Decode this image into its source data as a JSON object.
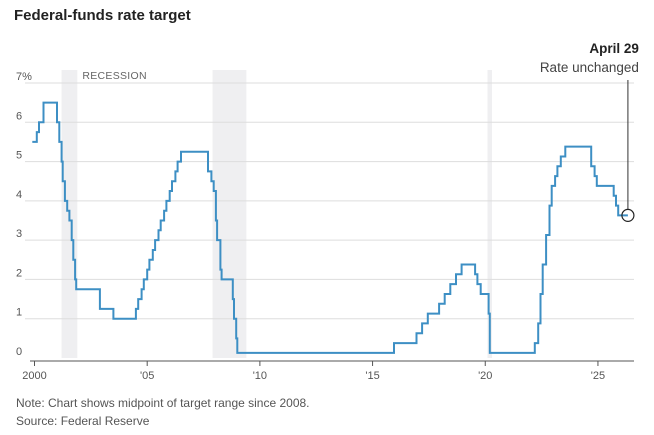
{
  "header": {
    "title": "Federal-funds rate target"
  },
  "footer": {
    "note": "Note: Chart shows midpoint of target range since 2008.",
    "source": "Source: Federal Reserve"
  },
  "chart_data": {
    "type": "line",
    "title": "Federal-funds rate target",
    "xlabel": "",
    "ylabel": "",
    "xlim": [
      1999.8,
      2026.6
    ],
    "ylim": [
      0,
      7
    ],
    "y_ticks": [
      0,
      1,
      2,
      3,
      4,
      5,
      6,
      7
    ],
    "y_tick_labels": [
      "0",
      "1",
      "2",
      "3",
      "4",
      "5",
      "6",
      "7%"
    ],
    "x_ticks": [
      2000,
      2005,
      2010,
      2015,
      2020,
      2025
    ],
    "x_tick_labels": [
      "2000",
      "'05",
      "'10",
      "'15",
      "'20",
      "'25"
    ],
    "grid": true,
    "recession_label": "RECESSION",
    "recessions": [
      [
        2001.2,
        2001.9
      ],
      [
        2007.9,
        2009.4
      ],
      [
        2020.1,
        2020.3
      ]
    ],
    "annotation": {
      "date": "April 29",
      "text": "Rate unchanged",
      "x": 2026.33,
      "y": 3.63
    },
    "line_color": "#3d8fc4",
    "recession_color": "#efeff1",
    "series": [
      {
        "step": true,
        "x": [
          1999.9,
          2000.1,
          2000.2,
          2000.4,
          2001.0,
          2001.1,
          2001.2,
          2001.25,
          2001.35,
          2001.45,
          2001.55,
          2001.65,
          2001.72,
          2001.8,
          2001.85,
          2001.95,
          2002.9,
          2003.5,
          2004.5,
          2004.6,
          2004.75,
          2004.85,
          2005.0,
          2005.1,
          2005.25,
          2005.35,
          2005.5,
          2005.6,
          2005.75,
          2005.85,
          2006.0,
          2006.1,
          2006.25,
          2006.35,
          2006.5,
          2007.7,
          2007.85,
          2007.95,
          2008.05,
          2008.1,
          2008.25,
          2008.3,
          2008.8,
          2008.85,
          2008.95,
          2009.0,
          2015.95,
          2016.95,
          2017.2,
          2017.45,
          2017.95,
          2018.2,
          2018.45,
          2018.7,
          2018.95,
          2019.55,
          2019.65,
          2019.8,
          2020.15,
          2020.2,
          2022.2,
          2022.35,
          2022.45,
          2022.55,
          2022.7,
          2022.85,
          2022.95,
          2023.1,
          2023.2,
          2023.35,
          2023.55,
          2024.7,
          2024.85,
          2024.95,
          2025.7,
          2025.8,
          2025.9,
          2026.33
        ],
        "y": [
          5.5,
          5.75,
          6.0,
          6.5,
          6.0,
          5.5,
          5.0,
          4.5,
          4.0,
          3.75,
          3.5,
          3.0,
          2.5,
          2.0,
          1.75,
          1.75,
          1.25,
          1.0,
          1.25,
          1.5,
          1.75,
          2.0,
          2.25,
          2.5,
          2.75,
          3.0,
          3.25,
          3.5,
          3.75,
          4.0,
          4.25,
          4.5,
          4.75,
          5.0,
          5.25,
          4.75,
          4.5,
          4.25,
          3.5,
          3.0,
          2.25,
          2.0,
          1.5,
          1.0,
          0.5,
          0.13,
          0.38,
          0.63,
          0.88,
          1.13,
          1.38,
          1.63,
          1.88,
          2.13,
          2.38,
          2.13,
          1.88,
          1.63,
          1.13,
          0.13,
          0.38,
          0.88,
          1.63,
          2.38,
          3.13,
          3.88,
          4.38,
          4.63,
          4.88,
          5.13,
          5.38,
          4.88,
          4.63,
          4.38,
          4.13,
          3.88,
          3.63,
          3.63
        ]
      }
    ]
  }
}
